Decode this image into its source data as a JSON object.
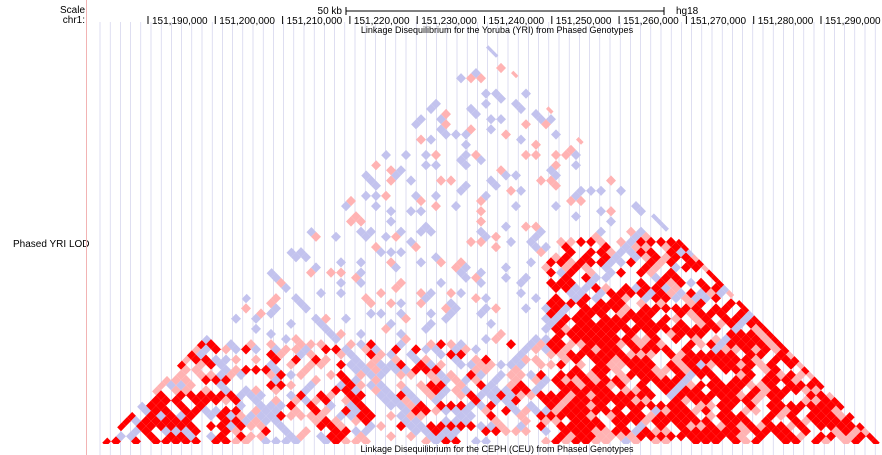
{
  "browser": {
    "scale_label": "Scale",
    "chrom_label": "chr1:",
    "scale_bar_text": "50 kb",
    "assembly": "hg18",
    "positions": [
      "151,190,000",
      "151,200,000",
      "151,210,000",
      "151,220,000",
      "151,230,000",
      "151,240,000",
      "151,250,000",
      "151,260,000",
      "151,270,000",
      "151,280,000",
      "151,290,000"
    ],
    "track": {
      "side_label": "Phased YRI LOD",
      "title": "Linkage Disequilibrium for the Yoruba (YRI) from Phased Genotypes",
      "next_title": "Linkage Disequilibrium for the CEPH (CEU) from Phased Genotypes"
    },
    "colors": {
      "strong_ld": "#ff0000",
      "medium_ld": "#ffb3b3",
      "weak_ld": "#c3c3ee",
      "no_ld": "#ffffff",
      "grid": "#c8c8e8",
      "divider": "#f2b3b3"
    }
  }
}
